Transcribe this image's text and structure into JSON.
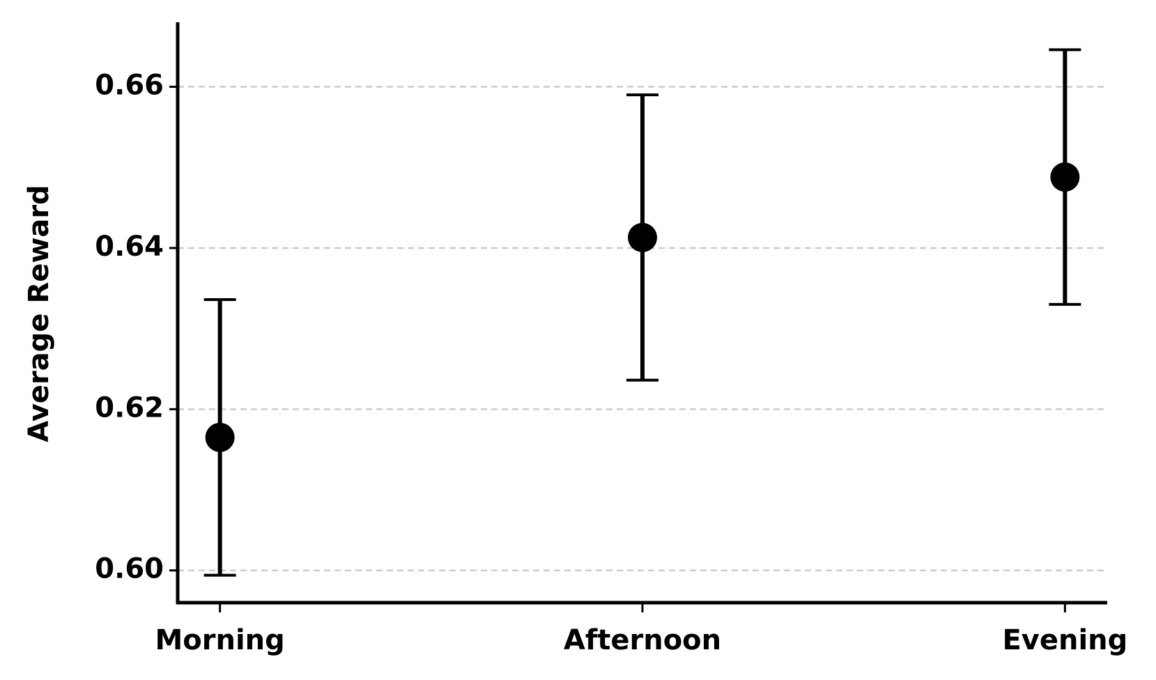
{
  "chart_data": {
    "type": "errorbar",
    "y_label": "Average Reward",
    "categories": [
      "Morning",
      "Afternoon",
      "Evening"
    ],
    "values": [
      0.6165,
      0.6413,
      0.6488
    ],
    "errors": [
      0.0171,
      0.0177,
      0.0158
    ],
    "color": "#000000",
    "ylim": [
      0.596,
      0.668
    ],
    "yticks": [
      {
        "value": 0.6,
        "label": "0.60"
      },
      0.62,
      0.64,
      0.66
    ],
    "grid": true
  }
}
